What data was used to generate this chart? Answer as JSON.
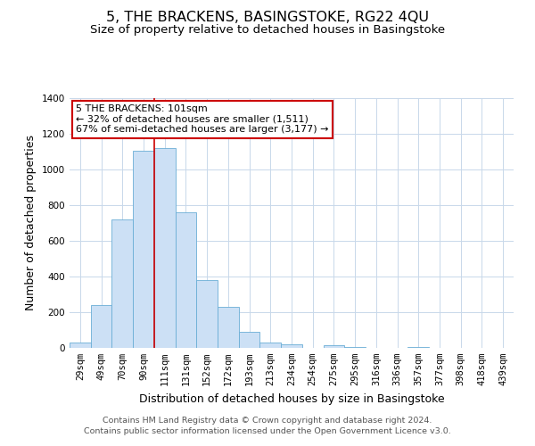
{
  "title": "5, THE BRACKENS, BASINGSTOKE, RG22 4QU",
  "subtitle": "Size of property relative to detached houses in Basingstoke",
  "xlabel": "Distribution of detached houses by size in Basingstoke",
  "ylabel": "Number of detached properties",
  "categories": [
    "29sqm",
    "49sqm",
    "70sqm",
    "90sqm",
    "111sqm",
    "131sqm",
    "152sqm",
    "172sqm",
    "193sqm",
    "213sqm",
    "234sqm",
    "254sqm",
    "275sqm",
    "295sqm",
    "316sqm",
    "336sqm",
    "357sqm",
    "377sqm",
    "398sqm",
    "418sqm",
    "439sqm"
  ],
  "values": [
    30,
    240,
    720,
    1105,
    1120,
    760,
    380,
    230,
    90,
    30,
    20,
    0,
    15,
    5,
    0,
    0,
    5,
    0,
    0,
    0,
    0
  ],
  "bar_color": "#cce0f5",
  "bar_edge_color": "#6aaed6",
  "marker_line_color": "#cc0000",
  "annotation_title": "5 THE BRACKENS: 101sqm",
  "annotation_line1": "← 32% of detached houses are smaller (1,511)",
  "annotation_line2": "67% of semi-detached houses are larger (3,177) →",
  "annotation_box_edge": "#cc0000",
  "ylim": [
    0,
    1400
  ],
  "yticks": [
    0,
    200,
    400,
    600,
    800,
    1000,
    1200,
    1400
  ],
  "footer_line1": "Contains HM Land Registry data © Crown copyright and database right 2024.",
  "footer_line2": "Contains public sector information licensed under the Open Government Licence v3.0.",
  "background_color": "#ffffff",
  "grid_color": "#c8d8ea",
  "title_fontsize": 11.5,
  "subtitle_fontsize": 9.5,
  "axis_label_fontsize": 9,
  "tick_fontsize": 7.5,
  "annotation_fontsize": 8,
  "footer_fontsize": 6.8
}
